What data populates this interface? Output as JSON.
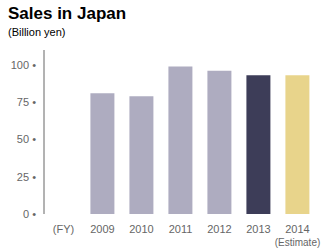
{
  "chart_data": {
    "type": "bar",
    "title": "Sales in Japan",
    "subtitle": "(Billion yen)",
    "categories": [
      "(FY)",
      "2009",
      "2010",
      "2011",
      "2012",
      "2013",
      "2014"
    ],
    "values": [
      0,
      81,
      79,
      99,
      96,
      93,
      93
    ],
    "colors": [
      "none",
      "#aeacc0",
      "#aeacc0",
      "#aeacc0",
      "#aeacc0",
      "#3d3d58",
      "#e8d48b"
    ],
    "ylim": [
      0,
      110
    ],
    "yticks": [
      {
        "value": 0,
        "label": "0 •"
      },
      {
        "value": 25,
        "label": "25 •"
      },
      {
        "value": 50,
        "label": "50 •"
      },
      {
        "value": 75,
        "label": "75 •"
      },
      {
        "value": 100,
        "label": "100 •"
      }
    ],
    "annotations": [
      {
        "text": "(Estimate)",
        "x": "2014"
      }
    ],
    "grid": false
  }
}
